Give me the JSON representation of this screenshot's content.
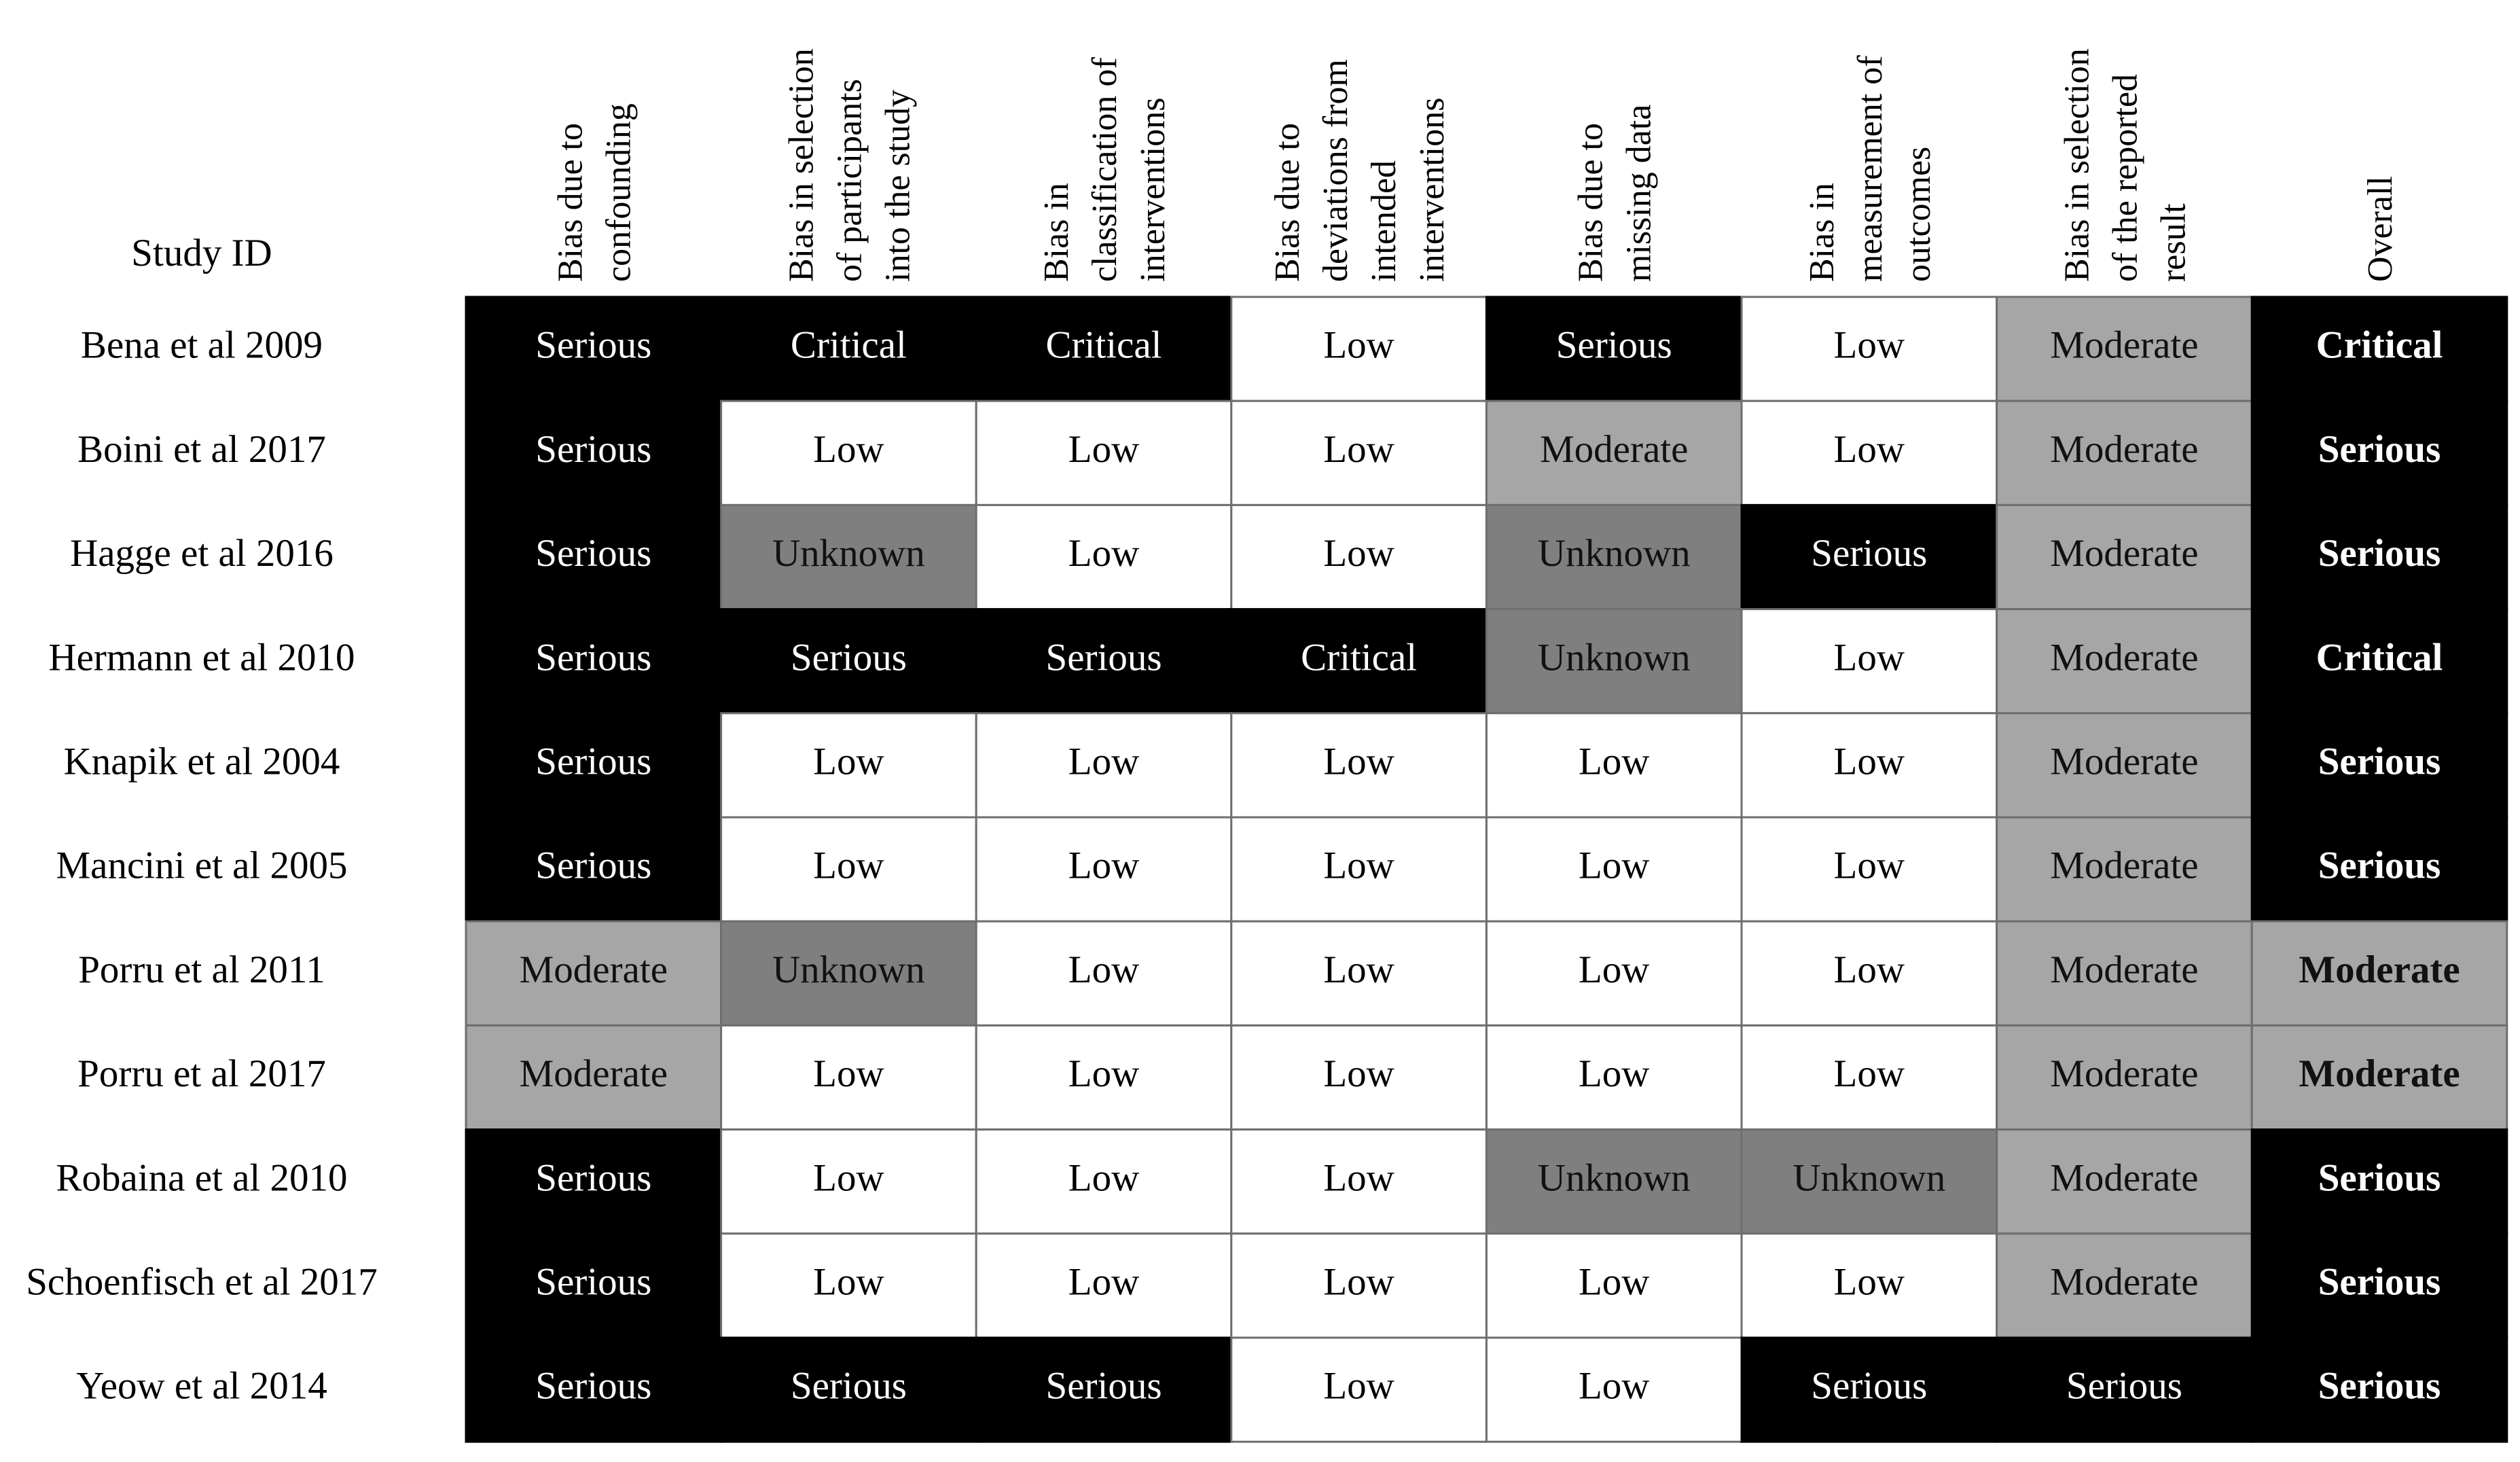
{
  "table": {
    "corner": "Study ID",
    "headers": [
      [
        "Bias due to",
        "confounding"
      ],
      [
        "Bias in selection",
        "of participants",
        "into the study"
      ],
      [
        "Bias in",
        "classification of",
        "interventions"
      ],
      [
        "Bias due to",
        "deviations from",
        "intended",
        "interventions"
      ],
      [
        "Bias due to",
        "missing data"
      ],
      [
        "Bias in",
        "measurement of",
        "outcomes"
      ],
      [
        "Bias in selection",
        "of the reported",
        "result"
      ],
      [
        "Overall"
      ]
    ],
    "rows": [
      [
        "Bena et al 2009",
        "Serious",
        "Critical",
        "Critical",
        "Low",
        "Serious",
        "Low",
        "Moderate",
        "Critical"
      ],
      [
        "Boini et al 2017",
        "Serious",
        "Low",
        "Low",
        "Low",
        "Moderate",
        "Low",
        "Moderate",
        "Serious"
      ],
      [
        "Hagge et al 2016",
        "Serious",
        "Unknown",
        "Low",
        "Low",
        "Unknown",
        "Serious",
        "Moderate",
        "Serious"
      ],
      [
        "Hermann et al 2010",
        "Serious",
        "Serious",
        "Serious",
        "Critical",
        "Unknown",
        "Low",
        "Moderate",
        "Critical"
      ],
      [
        "Knapik et al 2004",
        "Serious",
        "Low",
        "Low",
        "Low",
        "Low",
        "Low",
        "Moderate",
        "Serious"
      ],
      [
        "Mancini et al 2005",
        "Serious",
        "Low",
        "Low",
        "Low",
        "Low",
        "Low",
        "Moderate",
        "Serious"
      ],
      [
        "Porru et al 2011",
        "Moderate",
        "Unknown",
        "Low",
        "Low",
        "Low",
        "Low",
        "Moderate",
        "Moderate"
      ],
      [
        "Porru et al 2017",
        "Moderate",
        "Low",
        "Low",
        "Low",
        "Low",
        "Low",
        "Moderate",
        "Moderate"
      ],
      [
        "Robaina et al 2010",
        "Serious",
        "Low",
        "Low",
        "Low",
        "Unknown",
        "Unknown",
        "Moderate",
        "Serious"
      ],
      [
        "Schoenfisch et al 2017",
        "Serious",
        "Low",
        "Low",
        "Low",
        "Low",
        "Low",
        "Moderate",
        "Serious"
      ],
      [
        "Yeow et al 2014",
        "Serious",
        "Serious",
        "Serious",
        "Low",
        "Low",
        "Serious",
        "Serious",
        "Serious"
      ]
    ],
    "colors": {
      "Serious": {
        "fill": "#000000",
        "text": "#ffffff"
      },
      "Critical": {
        "fill": "#000000",
        "text": "#ffffff"
      },
      "Low": {
        "fill": "#ffffff",
        "text": "#000000"
      },
      "Moderate": {
        "fill": "#a6a6a6",
        "text": "#111111"
      },
      "Unknown": {
        "fill": "#7f7f7f",
        "text": "#111111"
      }
    }
  }
}
